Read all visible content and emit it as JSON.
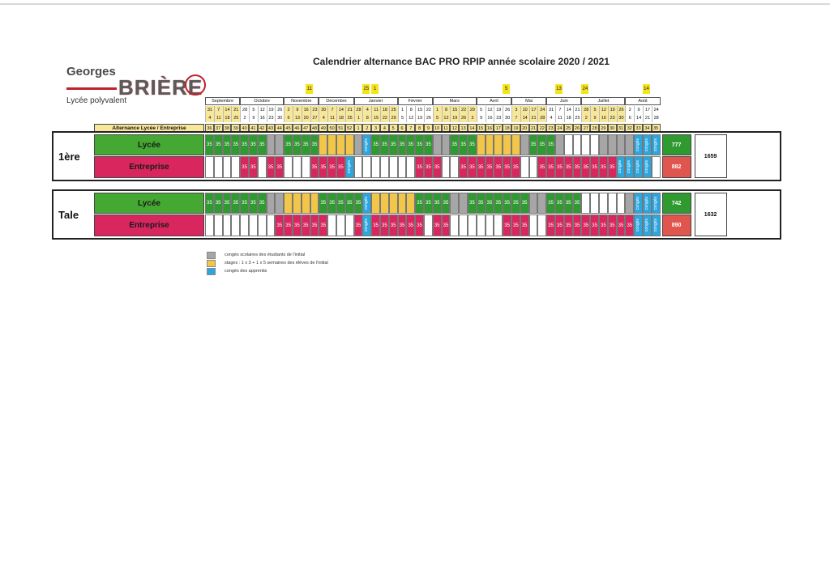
{
  "logo": {
    "line1": "Georges",
    "line2": "BRIÈRE",
    "line3": "Lycée polyvalent"
  },
  "title": "Calendrier alternance BAC PRO RPIP année scolaire 2020 / 2021",
  "months": [
    "Septembre",
    "Octobre",
    "Novembre",
    "Décembre",
    "Janvier",
    "Février",
    "Mars",
    "Avril",
    "Mai",
    "Juin",
    "Juillet",
    "Août"
  ],
  "vacations": [
    "11",
    "25",
    "1",
    "5",
    "13",
    "24",
    "14"
  ],
  "date_row1": [
    "31",
    "7",
    "14",
    "21",
    "28",
    "5",
    "12",
    "19",
    "26",
    "2",
    "9",
    "16",
    "23",
    "30",
    "7",
    "14",
    "21",
    "28",
    "4",
    "11",
    "18",
    "25",
    "1",
    "8",
    "15",
    "22",
    "1",
    "8",
    "15",
    "22",
    "29",
    "5",
    "12",
    "19",
    "26",
    "3",
    "10",
    "17",
    "24",
    "31",
    "7",
    "14",
    "21",
    "28",
    "5",
    "12",
    "19",
    "26",
    "2",
    "9",
    "17",
    "24"
  ],
  "date_row2": [
    "4",
    "11",
    "18",
    "25",
    "2",
    "9",
    "16",
    "23",
    "30",
    "6",
    "13",
    "20",
    "27",
    "4",
    "11",
    "18",
    "25",
    "1",
    "8",
    "15",
    "22",
    "29",
    "5",
    "12",
    "19",
    "26",
    "5",
    "12",
    "19",
    "26",
    "3",
    "9",
    "16",
    "23",
    "30",
    "7",
    "14",
    "21",
    "28",
    "4",
    "11",
    "18",
    "25",
    "2",
    "9",
    "16",
    "23",
    "30",
    "6",
    "14",
    "21",
    "28"
  ],
  "alt_label": "Alternance Lycée / Entreprise",
  "weeks": [
    "36",
    "37",
    "38",
    "39",
    "40",
    "41",
    "42",
    "43",
    "44",
    "45",
    "46",
    "47",
    "48",
    "49",
    "50",
    "51",
    "52",
    "1",
    "2",
    "3",
    "4",
    "5",
    "6",
    "7",
    "8",
    "9",
    "10",
    "11",
    "12",
    "13",
    "14",
    "15",
    "16",
    "17",
    "18",
    "19",
    "20",
    "21",
    "22",
    "23",
    "24",
    "25",
    "26",
    "27",
    "28",
    "29",
    "30",
    "31",
    "32",
    "33",
    "34",
    "35"
  ],
  "cell_value": "35",
  "conges_label": "congés",
  "rows": [
    {
      "level": "1ère",
      "lycee": {
        "label": "Lycée",
        "total": "777",
        "cells": "GGGGGGGXXGGGGYYYYXCGGGGGGGXXGGGYYYYYXGGGXEEEEXXXXCCCC"
      },
      "entreprise": {
        "label": "Entreprise",
        "total": "882",
        "cells": "....PP.PP...PPPPC.......PPP..PPPPPPP..PPPPPPPPPCCCC"
      },
      "grand_total": "1659"
    },
    {
      "level": "Tale",
      "lycee": {
        "label": "Lycée",
        "total": "742",
        "cells": "GGGGGGGXXYYYYGGGGGCYYYYYGGGGXXGGGGGGGXXGGGGEEEEEXCCCC"
      },
      "entreprise": {
        "label": "Entreprise",
        "total": "890",
        "cells": "........PPPPPP...PCPPPPPP.PP......PPP..PPPPPPPPPPCCCC"
      },
      "grand_total": "1632"
    }
  ],
  "legend": [
    {
      "color": "#a6a6a6",
      "text": "congés scolaires des étudiants de l'initial"
    },
    {
      "color": "#f2c648",
      "text": "stages : 1 x 3 + 1 x 5 semaines des élèves de l'initial"
    },
    {
      "color": "#2ba6de",
      "text": "congés des apprentis"
    }
  ],
  "colors": {
    "green": "#2f9a2f",
    "pink": "#d9265f",
    "grey": "#a6a6a6",
    "yellow": "#f2c648",
    "blue": "#2ba6de",
    "label_green": "#44a832",
    "label_pink": "#d9265f",
    "total_red": "#e0554d"
  }
}
